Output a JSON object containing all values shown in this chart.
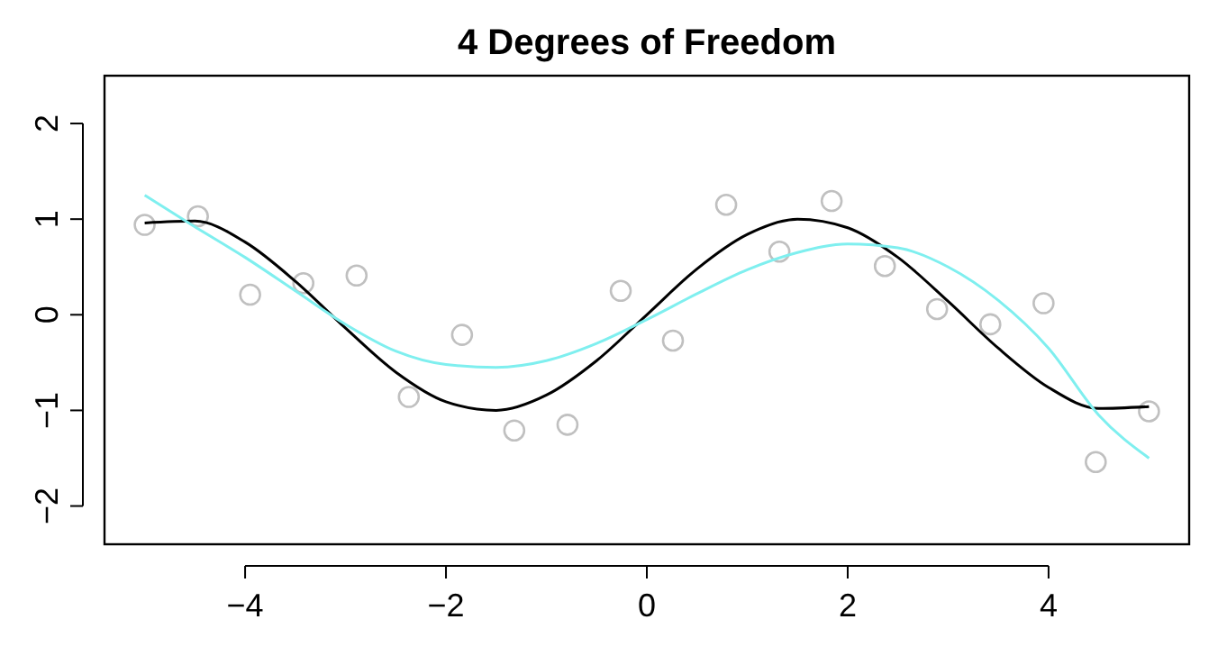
{
  "chart_data": {
    "type": "scatter",
    "title": "4 Degrees of Freedom",
    "xlim": [
      -5.4,
      5.4
    ],
    "ylim": [
      -2.4,
      2.5
    ],
    "xticks": [
      -4,
      -2,
      0,
      2,
      4
    ],
    "yticks": [
      -2,
      -1,
      0,
      1,
      2
    ],
    "grid": false,
    "series": [
      {
        "marker": "circle",
        "color": "#c0c0c0",
        "x": [
          -5,
          -4.47,
          -3.95,
          -3.42,
          -2.89,
          -2.37,
          -1.84,
          -1.32,
          -0.79,
          -0.26,
          0.26,
          0.79,
          1.32,
          1.84,
          2.37,
          2.89,
          3.42,
          3.95,
          4.47,
          5
        ],
        "values": [
          0.94,
          1.03,
          0.21,
          0.33,
          0.41,
          -0.86,
          -0.21,
          -1.21,
          -1.15,
          0.25,
          -0.27,
          1.15,
          0.66,
          1.19,
          0.51,
          0.06,
          -0.1,
          0.12,
          -1.54,
          -1.01
        ]
      },
      {
        "type": "line",
        "color": "#000000",
        "x": [
          -5,
          -4.5,
          -4,
          -3.5,
          -3,
          -2.5,
          -2,
          -1.5,
          -1,
          -0.5,
          0,
          0.5,
          1,
          1.5,
          2,
          2.5,
          3,
          3.5,
          4,
          4.5,
          5
        ],
        "values": [
          0.96,
          0.98,
          0.76,
          0.35,
          -0.14,
          -0.6,
          -0.91,
          -1,
          -0.84,
          -0.48,
          0,
          0.48,
          0.84,
          1,
          0.91,
          0.6,
          0.14,
          -0.35,
          -0.76,
          -0.98,
          -0.96
        ]
      },
      {
        "type": "line",
        "color": "#7fefef",
        "x": [
          -5,
          -4.5,
          -4,
          -3.5,
          -3,
          -2.5,
          -2,
          -1.5,
          -1,
          -0.5,
          0,
          0.5,
          1,
          1.5,
          2,
          2.5,
          3,
          3.5,
          4,
          4.5,
          5
        ],
        "values": [
          1.25,
          0.92,
          0.6,
          0.25,
          -0.1,
          -0.38,
          -0.52,
          -0.55,
          -0.48,
          -0.3,
          -0.05,
          0.22,
          0.47,
          0.65,
          0.74,
          0.7,
          0.5,
          0.15,
          -0.35,
          -1.05,
          -1.5
        ]
      }
    ]
  }
}
